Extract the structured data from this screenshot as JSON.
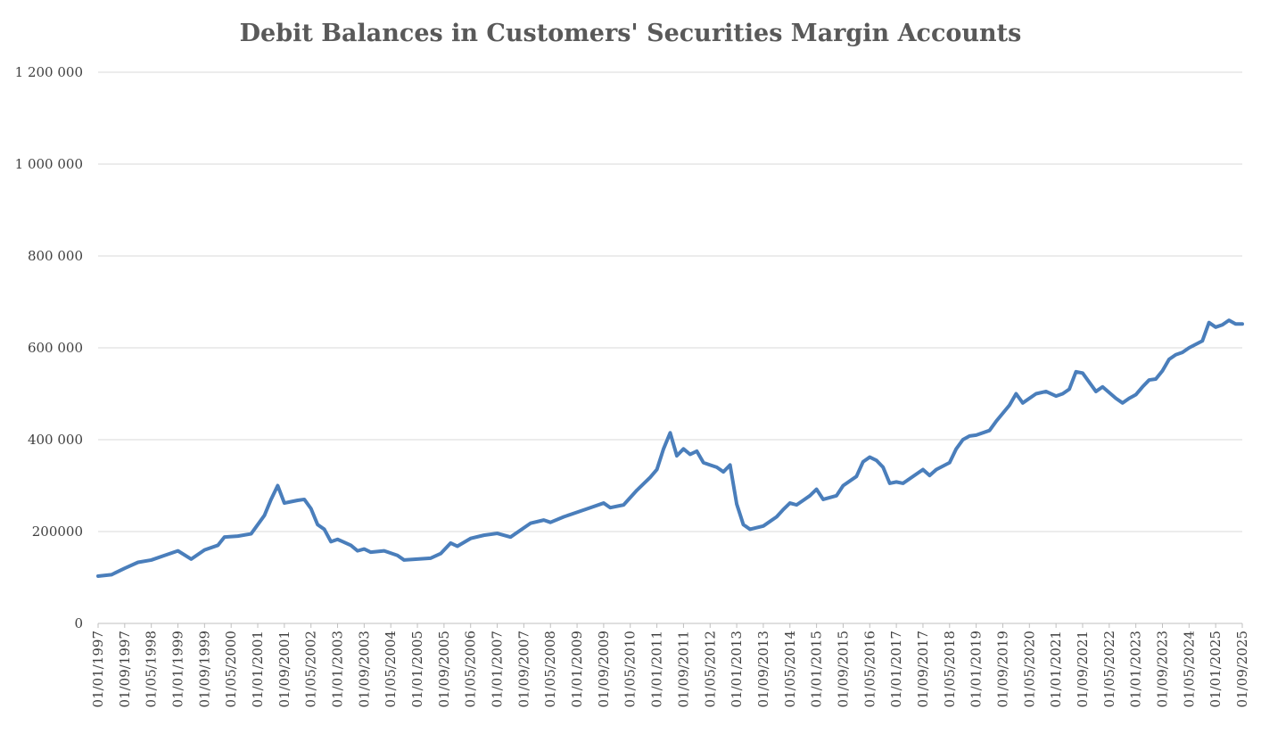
{
  "chart_data": {
    "type": "line",
    "title": "Debit Balances in Customers' Securities Margin Accounts",
    "xlabel": "",
    "ylabel": "",
    "ylim": [
      0,
      1200000
    ],
    "grid": true,
    "legend": "none",
    "y_ticks": [
      {
        "value": 0,
        "label": "0"
      },
      {
        "value": 200000,
        "label": "200000"
      },
      {
        "value": 400000,
        "label": "400 000"
      },
      {
        "value": 600000,
        "label": "600 000"
      },
      {
        "value": 800000,
        "label": "800 000"
      },
      {
        "value": 1000000,
        "label": "1 000 000"
      },
      {
        "value": 1200000,
        "label": "1 200 000"
      }
    ],
    "x_tick_labels": [
      "01/01/1997",
      "01/09/1997",
      "01/05/1998",
      "01/01/1999",
      "01/09/1999",
      "01/05/2000",
      "01/01/2001",
      "01/09/2001",
      "01/05/2002",
      "01/01/2003",
      "01/09/2003",
      "01/05/2004",
      "01/01/2005",
      "01/09/2005",
      "01/05/2006",
      "01/01/2007",
      "01/09/2007",
      "01/05/2008",
      "01/01/2009",
      "01/09/2009",
      "01/05/2010",
      "01/01/2011",
      "01/09/2011",
      "01/05/2012",
      "01/01/2013",
      "01/09/2013",
      "01/05/2014",
      "01/01/2015",
      "01/09/2015",
      "01/05/2016",
      "01/01/2017",
      "01/09/2017",
      "01/05/2018",
      "01/01/2019",
      "01/09/2019",
      "01/05/2020",
      "01/01/2021",
      "01/09/2021",
      "01/05/2022",
      "01/01/2023",
      "01/09/2023",
      "01/05/2024",
      "01/01/2025",
      "01/09/2025"
    ],
    "x_range_months": [
      0,
      344
    ],
    "series": [
      {
        "name": "Debit balances",
        "color": "#4a7ebb",
        "points": [
          [
            0,
            103000
          ],
          [
            4,
            106000
          ],
          [
            8,
            120000
          ],
          [
            12,
            133000
          ],
          [
            16,
            138000
          ],
          [
            20,
            148000
          ],
          [
            24,
            158000
          ],
          [
            28,
            140000
          ],
          [
            32,
            160000
          ],
          [
            36,
            170000
          ],
          [
            38,
            188000
          ],
          [
            42,
            190000
          ],
          [
            46,
            195000
          ],
          [
            50,
            235000
          ],
          [
            52,
            270000
          ],
          [
            54,
            300000
          ],
          [
            56,
            262000
          ],
          [
            58,
            265000
          ],
          [
            60,
            268000
          ],
          [
            62,
            270000
          ],
          [
            64,
            250000
          ],
          [
            66,
            215000
          ],
          [
            68,
            205000
          ],
          [
            70,
            178000
          ],
          [
            72,
            183000
          ],
          [
            76,
            170000
          ],
          [
            78,
            158000
          ],
          [
            80,
            162000
          ],
          [
            82,
            155000
          ],
          [
            86,
            158000
          ],
          [
            90,
            148000
          ],
          [
            92,
            138000
          ],
          [
            96,
            140000
          ],
          [
            100,
            142000
          ],
          [
            103,
            152000
          ],
          [
            106,
            175000
          ],
          [
            108,
            168000
          ],
          [
            112,
            185000
          ],
          [
            116,
            192000
          ],
          [
            120,
            196000
          ],
          [
            124,
            188000
          ],
          [
            128,
            208000
          ],
          [
            130,
            218000
          ],
          [
            134,
            225000
          ],
          [
            136,
            220000
          ],
          [
            140,
            232000
          ],
          [
            144,
            242000
          ],
          [
            148,
            252000
          ],
          [
            152,
            262000
          ],
          [
            154,
            252000
          ],
          [
            158,
            258000
          ],
          [
            162,
            290000
          ],
          [
            166,
            318000
          ],
          [
            168,
            335000
          ],
          [
            170,
            380000
          ],
          [
            172,
            415000
          ],
          [
            174,
            365000
          ],
          [
            176,
            380000
          ],
          [
            178,
            368000
          ],
          [
            180,
            375000
          ],
          [
            182,
            350000
          ],
          [
            184,
            345000
          ],
          [
            186,
            340000
          ],
          [
            188,
            330000
          ],
          [
            190,
            345000
          ],
          [
            192,
            260000
          ],
          [
            194,
            215000
          ],
          [
            196,
            205000
          ],
          [
            200,
            212000
          ],
          [
            204,
            232000
          ],
          [
            206,
            248000
          ],
          [
            208,
            262000
          ],
          [
            210,
            258000
          ],
          [
            212,
            268000
          ],
          [
            214,
            278000
          ],
          [
            216,
            292000
          ],
          [
            218,
            270000
          ],
          [
            222,
            278000
          ],
          [
            224,
            300000
          ],
          [
            228,
            320000
          ],
          [
            230,
            352000
          ],
          [
            232,
            362000
          ],
          [
            234,
            355000
          ],
          [
            236,
            340000
          ],
          [
            238,
            305000
          ],
          [
            240,
            308000
          ],
          [
            242,
            305000
          ],
          [
            246,
            325000
          ],
          [
            248,
            335000
          ],
          [
            250,
            322000
          ],
          [
            252,
            335000
          ],
          [
            256,
            350000
          ],
          [
            258,
            380000
          ],
          [
            260,
            400000
          ],
          [
            262,
            408000
          ],
          [
            264,
            410000
          ],
          [
            268,
            420000
          ],
          [
            270,
            440000
          ],
          [
            274,
            475000
          ],
          [
            276,
            500000
          ],
          [
            278,
            480000
          ],
          [
            282,
            500000
          ],
          [
            285,
            505000
          ],
          [
            288,
            495000
          ],
          [
            290,
            500000
          ],
          [
            292,
            510000
          ],
          [
            294,
            548000
          ],
          [
            296,
            545000
          ],
          [
            300,
            505000
          ],
          [
            302,
            515000
          ],
          [
            306,
            490000
          ],
          [
            308,
            480000
          ],
          [
            310,
            490000
          ],
          [
            312,
            498000
          ],
          [
            314,
            515000
          ],
          [
            316,
            530000
          ],
          [
            318,
            532000
          ],
          [
            320,
            550000
          ],
          [
            322,
            575000
          ],
          [
            324,
            585000
          ],
          [
            326,
            590000
          ],
          [
            328,
            600000
          ],
          [
            332,
            615000
          ],
          [
            334,
            655000
          ],
          [
            336,
            645000
          ],
          [
            338,
            650000
          ],
          [
            340,
            660000
          ],
          [
            342,
            652000
          ],
          [
            344,
            652000
          ]
        ]
      }
    ]
  }
}
